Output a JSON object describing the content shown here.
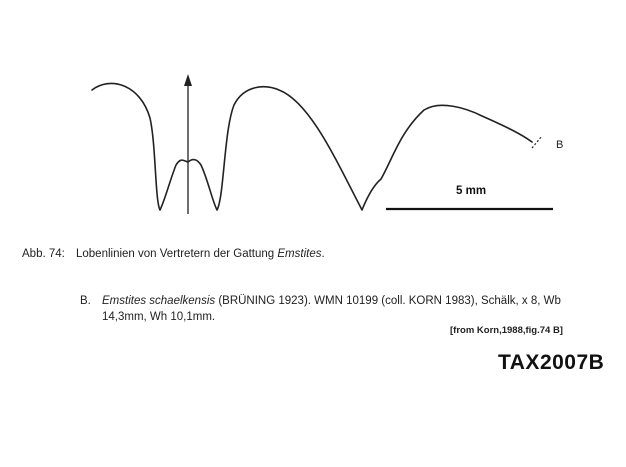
{
  "figure": {
    "scale_bar_label": "5 mm",
    "specimen_marker": "B"
  },
  "caption": {
    "label": "Abb. 74:",
    "text_plain": "Lobenlinien von Vertretern der Gattung ",
    "genus_italic": "Emstites",
    "text_end": "."
  },
  "entry": {
    "letter": "B.",
    "species_italic": "Emstites schaelkensis",
    "line1_rest": " (BRÜNING 1923). WMN 10199 (coll. KORN 1983), Schälk, x 8, Wb",
    "line2": "14,3mm, Wh 10,1mm."
  },
  "source_note": "[from Korn,1988,fig.74 B]",
  "specimen_code": "TAX2007B"
}
